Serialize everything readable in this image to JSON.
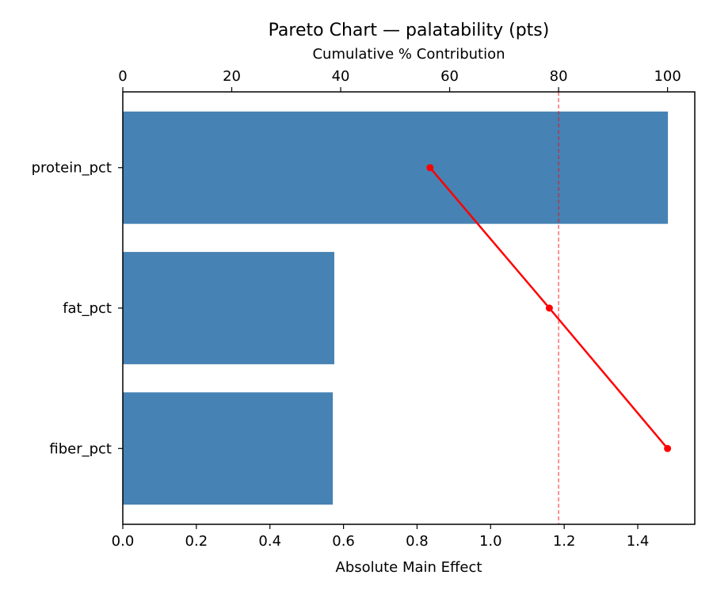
{
  "chart_data": {
    "type": "bar",
    "orientation": "horizontal",
    "title": "Pareto Chart — palatability (pts)",
    "xlabel": "Absolute Main Effect",
    "x2label": "Cumulative % Contribution",
    "categories": [
      "protein_pct",
      "fat_pct",
      "fiber_pct"
    ],
    "values": [
      1.482,
      0.575,
      0.571
    ],
    "bar_color": "#4682b4",
    "xlim": [
      0,
      1.555
    ],
    "xticks": [
      "0.0",
      "0.2",
      "0.4",
      "0.6",
      "0.8",
      "1.0",
      "1.2",
      "1.4"
    ],
    "x2lim": [
      0,
      105
    ],
    "x2ticks": [
      "0",
      "20",
      "40",
      "60",
      "80",
      "100"
    ],
    "cumulative": {
      "type": "line",
      "values": [
        56.4,
        78.3,
        100
      ],
      "color": "#ff0000"
    },
    "threshold": {
      "value": 80,
      "color": "#ff0000",
      "style": "dashed"
    },
    "grid": false
  }
}
